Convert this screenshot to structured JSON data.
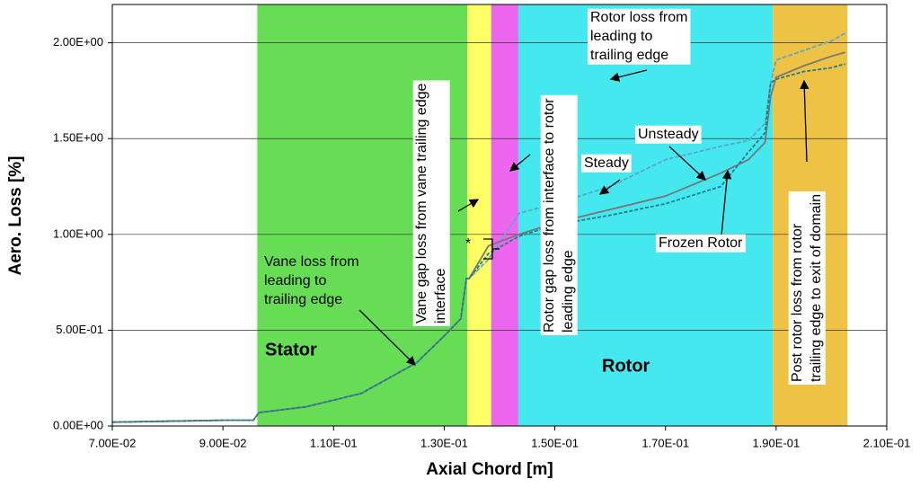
{
  "chart_data": {
    "type": "line",
    "x_label": "Axial Chord [m]",
    "y_label": "Aero. Loss [%]",
    "xlim": [
      0.07,
      0.21
    ],
    "ylim": [
      0,
      2.2
    ],
    "xticks": [
      {
        "value": 0.07,
        "label": "7.00E-02"
      },
      {
        "value": 0.09,
        "label": "9.00E-02"
      },
      {
        "value": 0.11,
        "label": "1.10E-01"
      },
      {
        "value": 0.13,
        "label": "1.30E-01"
      },
      {
        "value": 0.15,
        "label": "1.50E-01"
      },
      {
        "value": 0.17,
        "label": "1.70E-01"
      },
      {
        "value": 0.19,
        "label": "1.90E-01"
      },
      {
        "value": 0.21,
        "label": "2.10E-01"
      }
    ],
    "yticks": [
      {
        "value": 0,
        "label": "0.00E+00"
      },
      {
        "value": 0.5,
        "label": "5.00E-01"
      },
      {
        "value": 1,
        "label": "1.00E+00"
      },
      {
        "value": 1.5,
        "label": "1.50E+00"
      },
      {
        "value": 2,
        "label": "2.00E+00"
      }
    ],
    "grid": true,
    "regions": [
      {
        "x0": 0.0962,
        "x1": 0.1342,
        "color": "#66dd55",
        "label": "Stator"
      },
      {
        "x0": 0.1342,
        "x1": 0.1385,
        "color": "#ffff66"
      },
      {
        "x0": 0.1385,
        "x1": 0.1434,
        "color": "#ee66ee"
      },
      {
        "x0": 0.1434,
        "x1": 0.1894,
        "color": "#44e8ee",
        "label": "Rotor"
      },
      {
        "x0": 0.1894,
        "x1": 0.2029,
        "color": "#eec244"
      }
    ],
    "x": [
      0.07,
      0.08,
      0.09,
      0.0955,
      0.0965,
      0.105,
      0.115,
      0.125,
      0.13,
      0.133,
      0.134,
      0.1345,
      0.138,
      0.1435,
      0.15,
      0.16,
      0.17,
      0.18,
      0.185,
      0.188,
      0.189,
      0.19,
      0.195,
      0.2,
      0.2025
    ],
    "series": [
      {
        "name": "Steady",
        "color": "#5aa9c8",
        "values": [
          0.02,
          0.025,
          0.03,
          0.03,
          0.07,
          0.1,
          0.17,
          0.33,
          0.47,
          0.56,
          0.77,
          0.77,
          0.87,
          1.11,
          1.16,
          1.25,
          1.39,
          1.46,
          1.49,
          1.58,
          1.79,
          1.91,
          1.96,
          2.01,
          2.05
        ]
      },
      {
        "name": "Unsteady",
        "color": "#777777",
        "values": [
          0.02,
          0.025,
          0.03,
          0.03,
          0.07,
          0.1,
          0.17,
          0.33,
          0.47,
          0.56,
          0.77,
          0.77,
          0.94,
          1.0,
          1.06,
          1.13,
          1.2,
          1.32,
          1.39,
          1.48,
          1.72,
          1.82,
          1.88,
          1.93,
          1.95
        ]
      },
      {
        "name": "Frozen Rotor",
        "color": "#1e7f8a",
        "values": [
          0.02,
          0.025,
          0.03,
          0.03,
          0.07,
          0.1,
          0.17,
          0.33,
          0.47,
          0.56,
          0.77,
          0.77,
          0.9,
          0.99,
          1.05,
          1.1,
          1.16,
          1.25,
          1.43,
          1.53,
          1.79,
          1.81,
          1.85,
          1.87,
          1.89
        ]
      }
    ],
    "annotations": [
      {
        "lines": [
          "Rotor loss from",
          "leading to",
          "trailing edge"
        ]
      },
      {
        "lines": [
          "Vane gap loss from vane trailing edge",
          "interface"
        ]
      },
      {
        "lines": [
          "Rotor gap loss from interface to rotor",
          "leading edge"
        ]
      },
      {
        "lines": [
          "Post rotor loss from rotor",
          "trailing edge to exit of domain"
        ]
      },
      {
        "lines": [
          "Vane loss from",
          "leading to",
          "trailing edge"
        ]
      },
      {
        "lines": [
          "*"
        ]
      }
    ]
  }
}
